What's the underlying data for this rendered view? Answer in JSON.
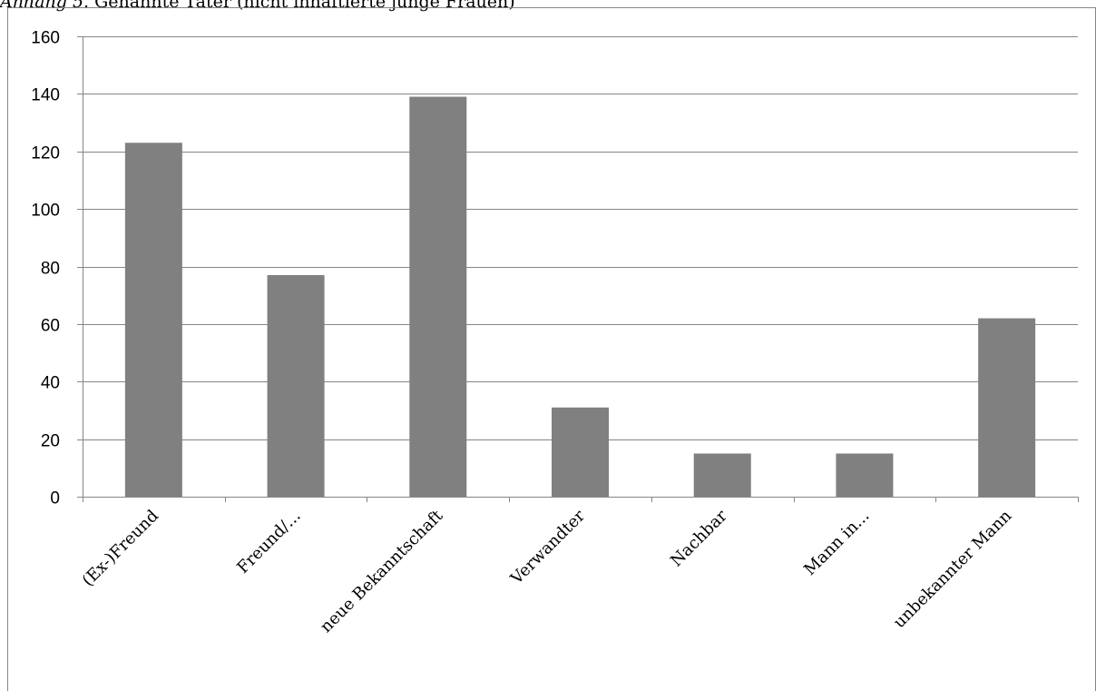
{
  "caption": {
    "lead": "Anhang 5.",
    "text": " Genannte Täter (nicht inhaftierte junge Frauen)"
  },
  "colors": {
    "bar": "#808080",
    "grid": "#868686",
    "frame": "#868686"
  },
  "chart_data": {
    "type": "bar",
    "title": "",
    "xlabel": "",
    "ylabel": "",
    "categories": [
      "(Ex-)Freund",
      "Freund/...",
      "neue Bekanntschaft",
      "Verwandter",
      "Nachbar",
      "Mann in...",
      "unbekannter Mann"
    ],
    "values": [
      123,
      77,
      139,
      31,
      15,
      15,
      62
    ],
    "ylim": [
      0,
      160
    ],
    "yticks": [
      0,
      20,
      40,
      60,
      80,
      100,
      120,
      140,
      160
    ],
    "grid": true,
    "legend": "none"
  }
}
